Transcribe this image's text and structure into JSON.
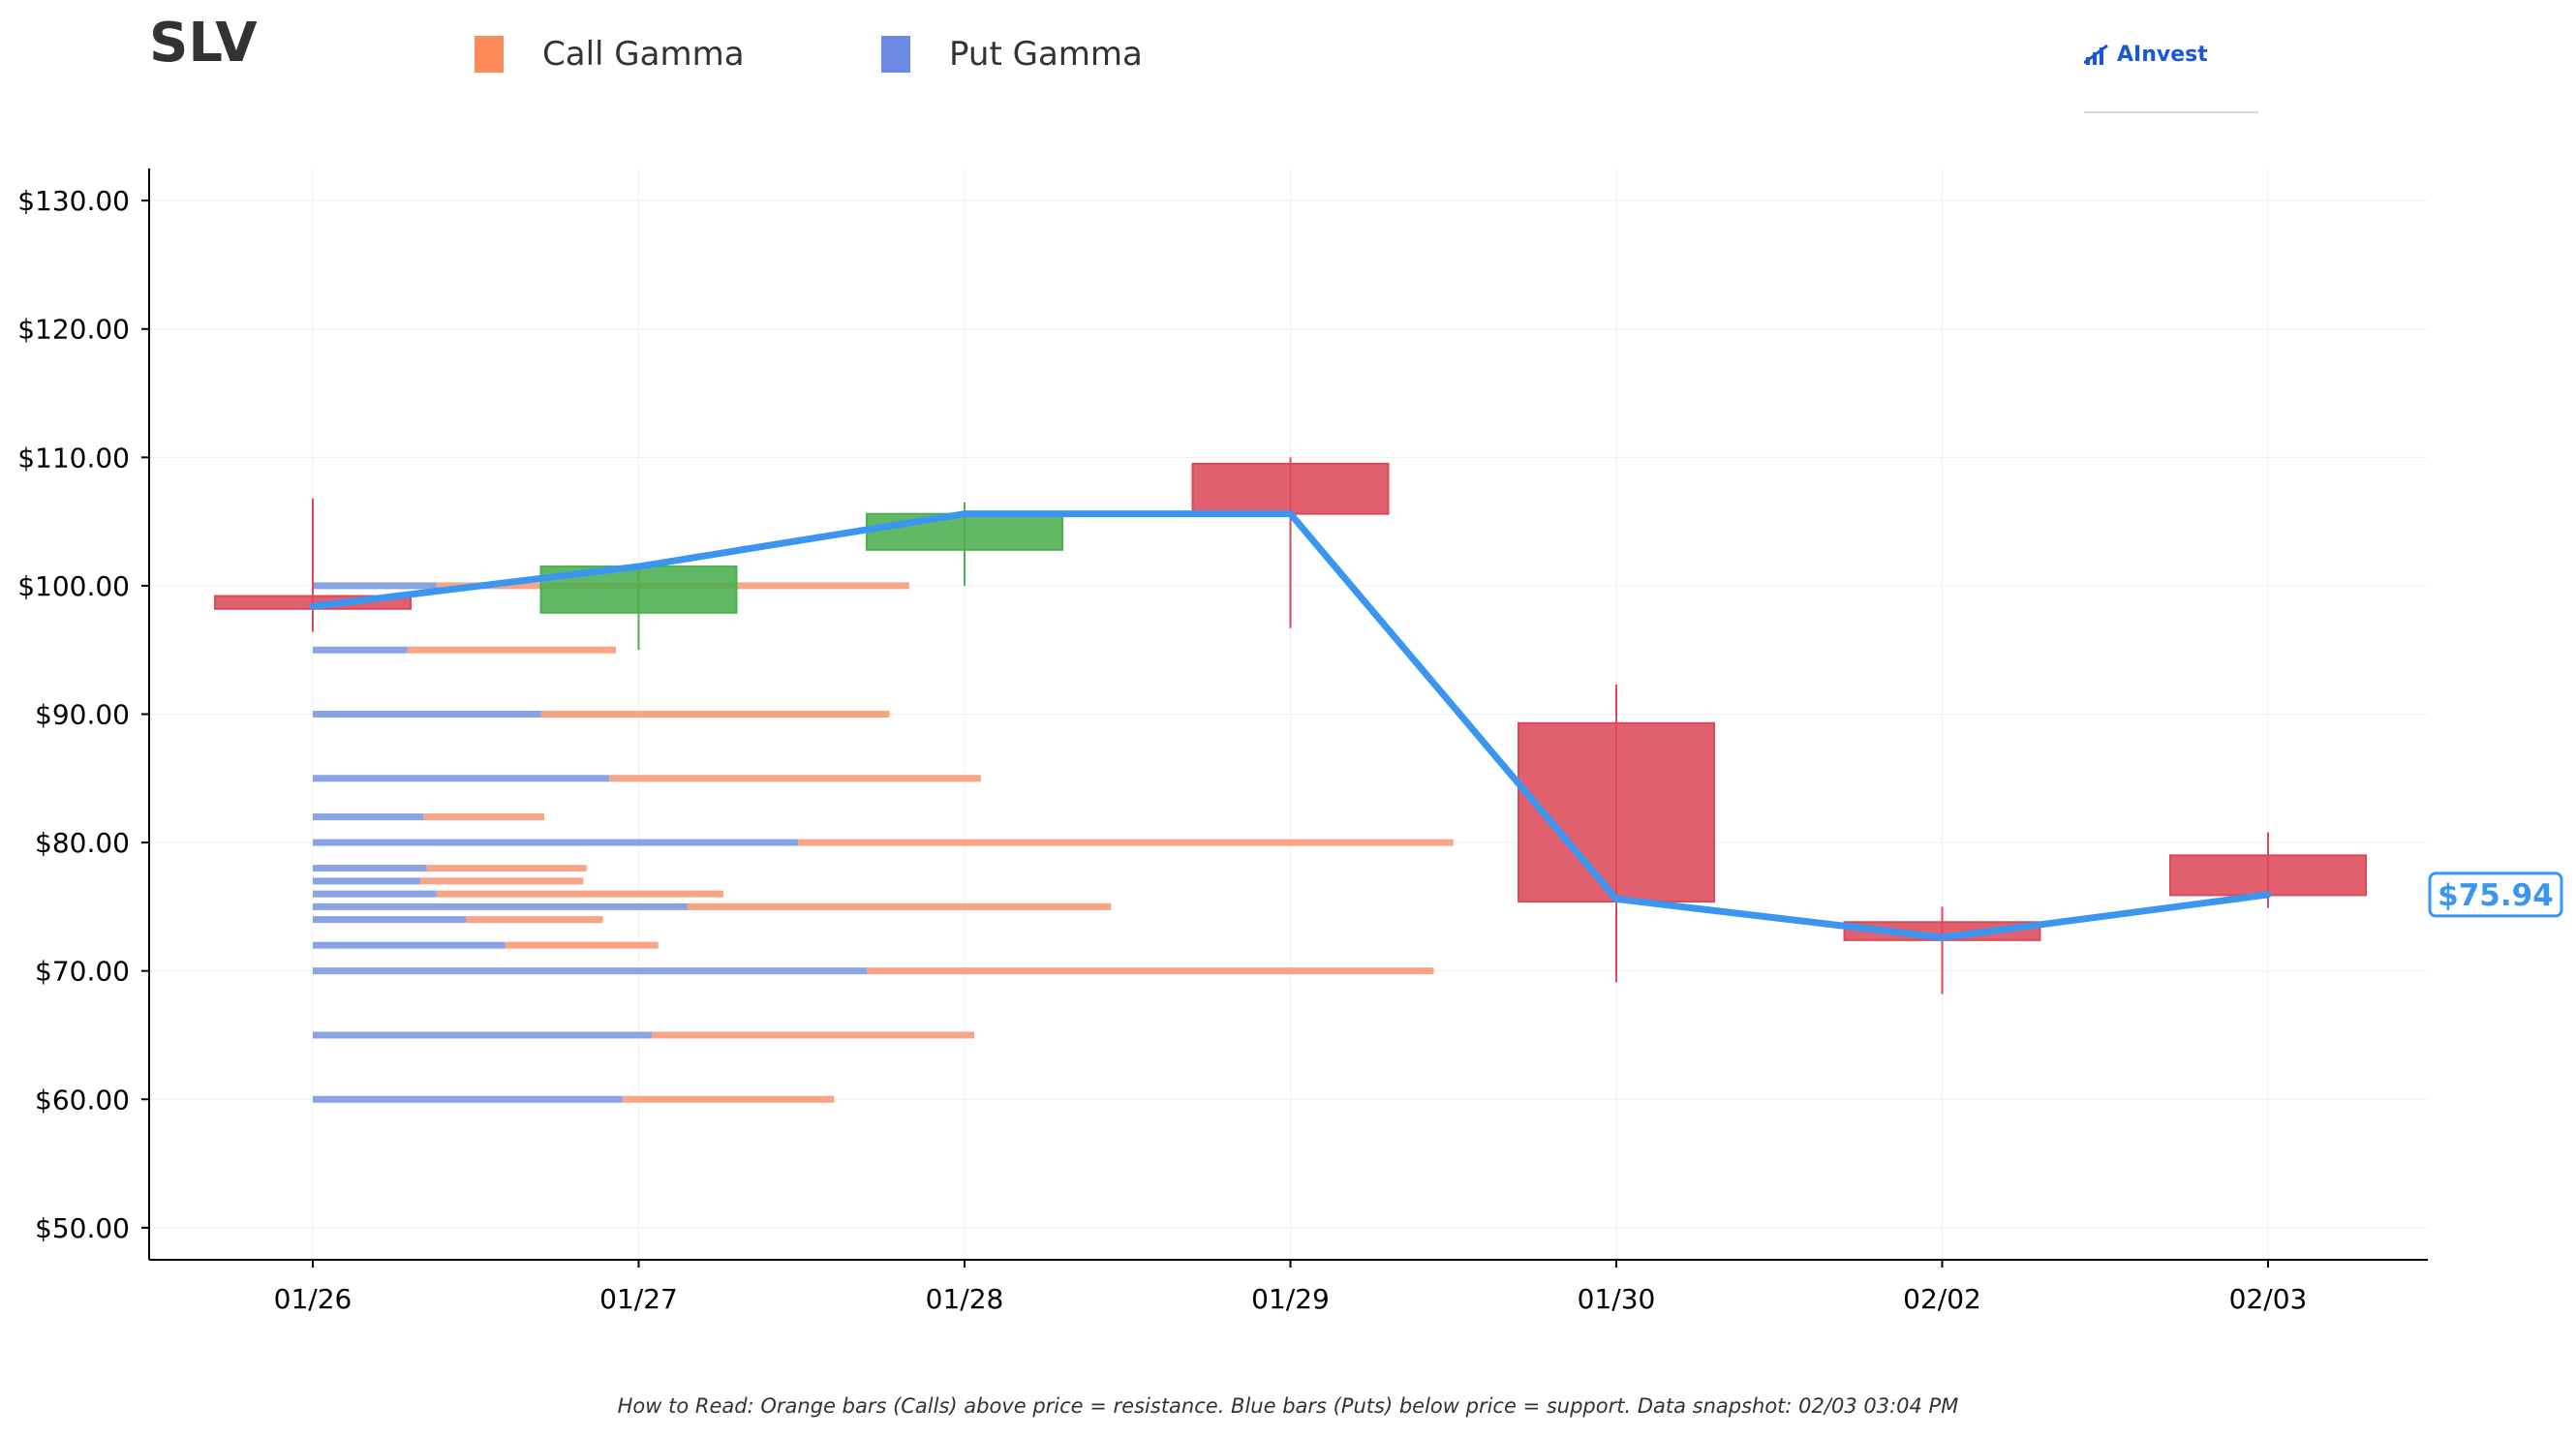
{
  "header": {
    "ticker": "SLV",
    "brand": "AInvest"
  },
  "legend": [
    {
      "label": "Call Gamma",
      "color": "#ff8c5a"
    },
    {
      "label": "Put Gamma",
      "color": "#6b8be6"
    }
  ],
  "footer": {
    "note": "How to Read: Orange bars (Calls) above price = resistance. Blue bars (Puts) below price = support. Data snapshot: 02/03 03:04 PM"
  },
  "colors": {
    "up": "#4caf50",
    "down": "#dc4a5a",
    "price_line": "#3a96f0",
    "call": "#f7a585",
    "put": "#8aa2e6",
    "axis": "#000000",
    "grid": "#f0f0f0"
  },
  "chart_data": {
    "type": "candlestick",
    "ylim": [
      47.5,
      132.5
    ],
    "y_ticks": [
      50,
      60,
      70,
      80,
      90,
      100,
      110,
      120,
      130
    ],
    "y_tick_labels": [
      "$50.00",
      "$60.00",
      "$70.00",
      "$80.00",
      "$90.00",
      "$100.00",
      "$110.00",
      "$120.00",
      "$130.00"
    ],
    "categories": [
      "01/26",
      "01/27",
      "01/28",
      "01/29",
      "01/30",
      "02/02",
      "02/03"
    ],
    "candles": [
      {
        "date": "01/26",
        "open": 99.2,
        "close": 98.2,
        "high": 106.8,
        "low": 96.4
      },
      {
        "date": "01/27",
        "open": 97.9,
        "close": 101.5,
        "high": 101.5,
        "low": 95.0
      },
      {
        "date": "01/28",
        "open": 102.8,
        "close": 105.6,
        "high": 106.5,
        "low": 100.0
      },
      {
        "date": "01/29",
        "open": 109.5,
        "close": 105.6,
        "high": 110.0,
        "low": 96.7
      },
      {
        "date": "01/30",
        "open": 89.3,
        "close": 75.4,
        "high": 92.3,
        "low": 69.1
      },
      {
        "date": "02/02",
        "open": 73.8,
        "close": 72.4,
        "high": 75.0,
        "low": 68.2
      },
      {
        "date": "02/03",
        "open": 79.0,
        "close": 75.9,
        "high": 80.8,
        "low": 74.9
      }
    ],
    "price_line": [
      98.4,
      101.5,
      105.6,
      105.6,
      75.6,
      72.6,
      75.94
    ],
    "last_price_label": "$75.94",
    "gamma_bars": [
      {
        "strike": 100,
        "put": 0.38,
        "total": 1.83
      },
      {
        "strike": 95,
        "put": 0.29,
        "total": 0.93
      },
      {
        "strike": 90,
        "put": 0.7,
        "total": 1.77
      },
      {
        "strike": 85,
        "put": 0.91,
        "total": 2.05
      },
      {
        "strike": 82,
        "put": 0.34,
        "total": 0.71
      },
      {
        "strike": 80,
        "put": 1.49,
        "total": 3.5
      },
      {
        "strike": 78,
        "put": 0.35,
        "total": 0.84
      },
      {
        "strike": 77,
        "put": 0.33,
        "total": 0.83
      },
      {
        "strike": 76,
        "put": 0.38,
        "total": 1.26
      },
      {
        "strike": 75,
        "put": 1.15,
        "total": 2.45
      },
      {
        "strike": 74,
        "put": 0.47,
        "total": 0.89
      },
      {
        "strike": 72,
        "put": 0.59,
        "total": 1.06
      },
      {
        "strike": 70,
        "put": 1.7,
        "total": 3.44
      },
      {
        "strike": 65,
        "put": 1.04,
        "total": 2.03
      },
      {
        "strike": 60,
        "put": 0.95,
        "total": 1.6
      }
    ],
    "legend_placement": "top",
    "grid": true
  }
}
